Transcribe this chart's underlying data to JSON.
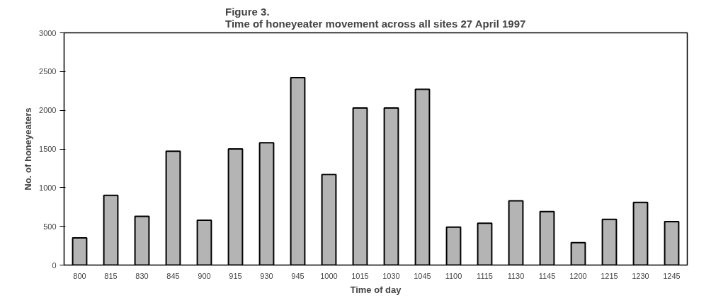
{
  "chart_data": {
    "type": "bar",
    "title": "Figure 3.\nTime of honeyeater movement across all sites 27 April 1997",
    "xlabel": "Time of day",
    "ylabel": "No. of honeyeaters",
    "categories": [
      "800",
      "815",
      "830",
      "845",
      "900",
      "915",
      "930",
      "945",
      "1000",
      "1015",
      "1030",
      "1045",
      "1100",
      "1115",
      "1130",
      "1145",
      "1200",
      "1215",
      "1230",
      "1245"
    ],
    "values": [
      350,
      900,
      630,
      1470,
      580,
      1500,
      1580,
      2420,
      1170,
      2030,
      2030,
      2270,
      490,
      540,
      830,
      690,
      290,
      590,
      810,
      560
    ],
    "color": "#b4b4b4",
    "ylim": [
      0,
      3000
    ],
    "yticks": [
      0,
      500,
      1000,
      1500,
      2000,
      2500,
      3000
    ],
    "grid": false
  }
}
